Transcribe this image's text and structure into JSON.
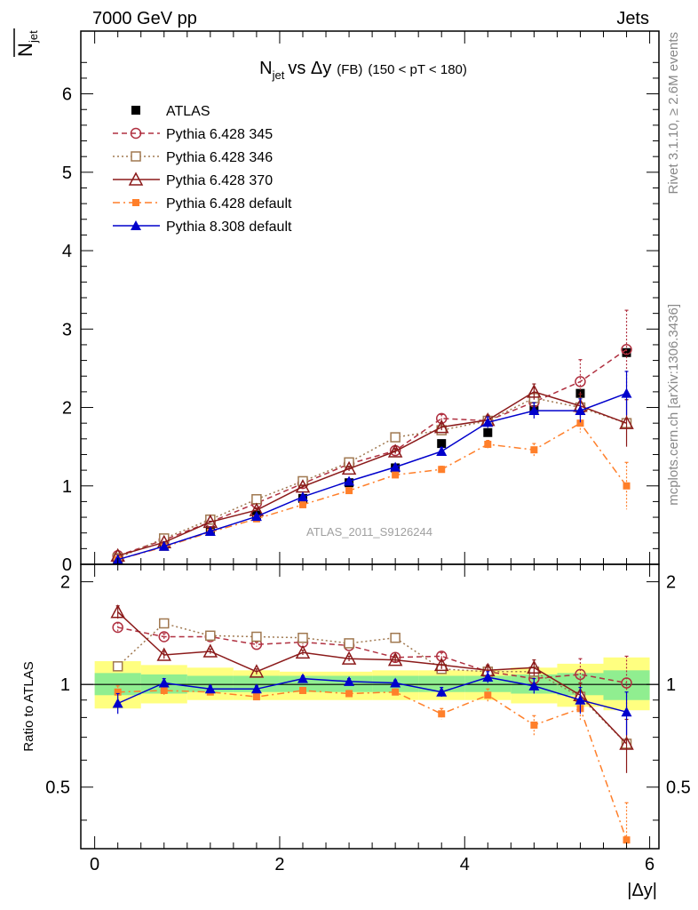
{
  "header": {
    "left": "7000 GeV pp",
    "right": "Jets"
  },
  "side_text": {
    "rivet": "Rivet 3.1.10, ≥ 2.6M events",
    "mcplots": "mcplots.cern.ch [arXiv:1306.3436]"
  },
  "watermark": "ATLAS_2011_S9126244",
  "colors": {
    "atlas": "#000000",
    "p345": "#b03040",
    "p346": "#a07850",
    "p370": "#8b1a1a",
    "p6def": "#ff7f2a",
    "p8def": "#0000cc",
    "band_yellow": "#ffff80",
    "band_green": "#90ee90"
  },
  "chart_data": [
    {
      "type": "line",
      "title": "N_jet vs Δy (FB) (150 < pT < 180)",
      "title_parts": {
        "n": "N",
        "sub": "jet",
        "vs": "vs Δy",
        "fb": "(FB)",
        "cut": "(150 < pT < 180)"
      },
      "ylabel": "N_jet (overlined)",
      "ylabel_parts": {
        "n": "N",
        "sub": "jet"
      },
      "xlim": [
        -0.15,
        6.1
      ],
      "ylim": [
        0,
        6.8
      ],
      "yticks": [
        0,
        1,
        2,
        3,
        4,
        5,
        6
      ],
      "ytick_labels": [
        "0",
        "1",
        "2",
        "3",
        "4",
        "5",
        "6"
      ],
      "x": [
        0.25,
        0.75,
        1.25,
        1.75,
        2.25,
        2.75,
        3.25,
        3.75,
        4.25,
        4.75,
        5.25,
        5.75
      ],
      "series": [
        {
          "name": "ATLAS",
          "key": "atlas",
          "values": [
            0.07,
            0.23,
            0.43,
            0.63,
            0.84,
            1.04,
            1.23,
            1.54,
            1.68,
            1.97,
            2.18,
            2.7
          ]
        },
        {
          "name": "Pythia 6.428 345",
          "key": "p345",
          "values": [
            0.11,
            0.31,
            0.54,
            0.78,
            1.03,
            1.28,
            1.45,
            1.86,
            1.83,
            2.07,
            2.33,
            2.74
          ],
          "errors": [
            0.01,
            0.01,
            0.01,
            0.01,
            0.02,
            0.02,
            0.03,
            0.05,
            0.07,
            0.12,
            0.28,
            0.5
          ]
        },
        {
          "name": "Pythia 6.428 346",
          "key": "p346",
          "values": [
            0.08,
            0.33,
            0.57,
            0.83,
            1.06,
            1.3,
            1.62,
            1.71,
            1.83,
            2.12,
            2.0,
            1.8
          ]
        },
        {
          "name": "Pythia 6.428 370",
          "key": "p370",
          "values": [
            0.11,
            0.28,
            0.54,
            0.69,
            0.99,
            1.22,
            1.44,
            1.75,
            1.84,
            2.2,
            2.02,
            1.8
          ],
          "errors": [
            0.01,
            0.01,
            0.01,
            0.02,
            0.02,
            0.03,
            0.03,
            0.04,
            0.06,
            0.1,
            0.15,
            0.3
          ]
        },
        {
          "name": "Pythia 6.428 default",
          "key": "p6def",
          "values": [
            0.06,
            0.22,
            0.41,
            0.58,
            0.76,
            0.94,
            1.14,
            1.21,
            1.53,
            1.46,
            1.8,
            1.0
          ],
          "errors": [
            0.01,
            0.01,
            0.01,
            0.01,
            0.02,
            0.02,
            0.03,
            0.04,
            0.05,
            0.08,
            0.12,
            0.3
          ]
        },
        {
          "name": "Pythia 8.308 default",
          "key": "p8def",
          "values": [
            0.06,
            0.23,
            0.42,
            0.61,
            0.86,
            1.06,
            1.24,
            1.44,
            1.81,
            1.96,
            1.96,
            2.18
          ],
          "errors": [
            0.01,
            0.01,
            0.01,
            0.02,
            0.02,
            0.03,
            0.03,
            0.05,
            0.07,
            0.1,
            0.15,
            0.28
          ]
        }
      ]
    },
    {
      "type": "line",
      "ylabel": "Ratio to ATLAS",
      "xlabel": "|Δy|",
      "xlim": [
        -0.15,
        6.1
      ],
      "ylim": [
        0.33,
        2.25
      ],
      "yscale": "log",
      "reference_line": 1,
      "yticks": [
        0.5,
        1,
        2
      ],
      "ytick_labels": [
        "0.5",
        "1",
        "2"
      ],
      "xticks": [
        0,
        2,
        4,
        6
      ],
      "xtick_labels": [
        "0",
        "2",
        "4",
        "6"
      ],
      "x": [
        0.25,
        0.75,
        1.25,
        1.75,
        2.25,
        2.75,
        3.25,
        3.75,
        4.25,
        4.75,
        5.25,
        5.75
      ],
      "bands": {
        "x_edges": [
          0,
          0.5,
          1.0,
          1.5,
          2.0,
          2.5,
          3.0,
          3.5,
          4.0,
          4.5,
          5.0,
          5.5,
          6.0
        ],
        "yellow": [
          [
            0.85,
            1.17
          ],
          [
            0.88,
            1.14
          ],
          [
            0.9,
            1.12
          ],
          [
            0.9,
            1.1
          ],
          [
            0.9,
            1.09
          ],
          [
            0.9,
            1.09
          ],
          [
            0.9,
            1.1
          ],
          [
            0.9,
            1.1
          ],
          [
            0.9,
            1.1
          ],
          [
            0.88,
            1.12
          ],
          [
            0.86,
            1.15
          ],
          [
            0.84,
            1.2
          ]
        ],
        "green": [
          [
            0.93,
            1.08
          ],
          [
            0.94,
            1.07
          ],
          [
            0.95,
            1.06
          ],
          [
            0.95,
            1.06
          ],
          [
            0.95,
            1.06
          ],
          [
            0.95,
            1.06
          ],
          [
            0.95,
            1.06
          ],
          [
            0.95,
            1.06
          ],
          [
            0.95,
            1.06
          ],
          [
            0.94,
            1.07
          ],
          [
            0.93,
            1.08
          ],
          [
            0.9,
            1.1
          ]
        ]
      },
      "series": [
        {
          "name": "Pythia 6.428 345",
          "key": "p345",
          "values": [
            1.47,
            1.38,
            1.38,
            1.31,
            1.33,
            1.3,
            1.2,
            1.21,
            1.09,
            1.04,
            1.07,
            1.01
          ],
          "errors": [
            0.05,
            0.03,
            0.02,
            0.02,
            0.02,
            0.02,
            0.02,
            0.03,
            0.04,
            0.06,
            0.12,
            0.2
          ]
        },
        {
          "name": "Pythia 6.428 346",
          "key": "p346",
          "values": [
            1.13,
            1.51,
            1.39,
            1.38,
            1.37,
            1.32,
            1.37,
            1.11,
            1.09,
            1.09,
            0.92,
            0.67
          ]
        },
        {
          "name": "Pythia 6.428 370",
          "key": "p370",
          "values": [
            1.63,
            1.22,
            1.25,
            1.09,
            1.24,
            1.19,
            1.18,
            1.14,
            1.1,
            1.12,
            0.93,
            0.67
          ],
          "errors": [
            0.07,
            0.03,
            0.02,
            0.02,
            0.02,
            0.02,
            0.02,
            0.03,
            0.04,
            0.06,
            0.08,
            0.12
          ]
        },
        {
          "name": "Pythia 6.428 default",
          "key": "p6def",
          "values": [
            0.95,
            0.96,
            0.95,
            0.92,
            0.96,
            0.94,
            0.95,
            0.82,
            0.93,
            0.76,
            0.85,
            0.35
          ],
          "errors": [
            0.04,
            0.03,
            0.02,
            0.02,
            0.02,
            0.02,
            0.02,
            0.03,
            0.04,
            0.05,
            0.07,
            0.1
          ]
        },
        {
          "name": "Pythia 8.308 default",
          "key": "p8def",
          "values": [
            0.88,
            1.01,
            0.97,
            0.97,
            1.04,
            1.02,
            1.01,
            0.95,
            1.05,
            0.99,
            0.9,
            0.83
          ],
          "errors": [
            0.06,
            0.03,
            0.02,
            0.02,
            0.02,
            0.02,
            0.02,
            0.03,
            0.04,
            0.05,
            0.08,
            0.12
          ]
        }
      ]
    }
  ]
}
